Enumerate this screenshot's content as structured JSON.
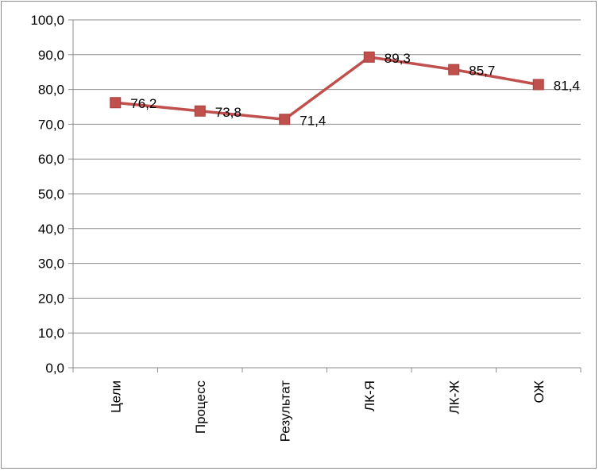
{
  "chart_data": {
    "type": "line",
    "title": "",
    "xlabel": "",
    "ylabel": "",
    "categories": [
      "Цели",
      "Процесс",
      "Результат",
      "ЛК-Я",
      "ЛК-Ж",
      "ОЖ"
    ],
    "series": [
      {
        "values": [
          76.2,
          73.8,
          71.4,
          89.3,
          85.7,
          81.4
        ],
        "data_labels": [
          "76,2",
          "73,8",
          "71,4",
          "89,3",
          "85,7",
          "81,4"
        ],
        "color": "#c0504d",
        "marker": "square"
      }
    ],
    "ylim": [
      0,
      100
    ],
    "yticks": [
      0,
      10,
      20,
      30,
      40,
      50,
      60,
      70,
      80,
      90,
      100
    ],
    "ytick_labels": [
      "0,0",
      "10,0",
      "20,0",
      "30,0",
      "40,0",
      "50,0",
      "60,0",
      "70,0",
      "80,0",
      "90,0",
      "100,0"
    ],
    "grid": "horizontal",
    "legend": "none",
    "x_tick_label_orientation": "vertical"
  }
}
